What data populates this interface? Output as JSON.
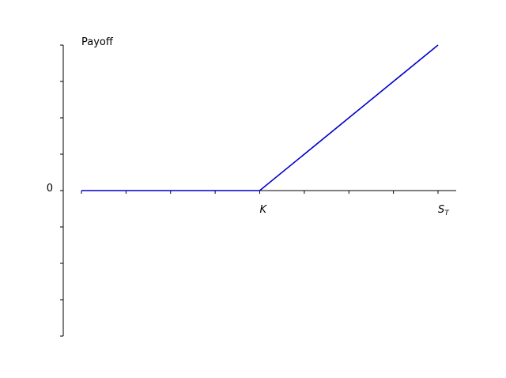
{
  "chart_data": {
    "type": "line",
    "title": "",
    "ylabel": "Payoff",
    "xlabel": "",
    "x_tick_labels": [
      {
        "x": 8,
        "label": "K",
        "sub": ""
      },
      {
        "x": 16,
        "label": "S",
        "sub": "T"
      }
    ],
    "y_tick_labels": [
      {
        "y": 0,
        "label": "0"
      }
    ],
    "x_ticks": [
      0,
      2,
      4,
      6,
      8,
      10,
      12,
      14,
      16
    ],
    "y_ticks": [
      -4,
      -3,
      -2,
      -1,
      0,
      1,
      2,
      3,
      4
    ],
    "xlim": [
      0,
      17
    ],
    "ylim": [
      -4,
      4
    ],
    "series": [
      {
        "x": [
          0,
          8,
          16
        ],
        "y": [
          0,
          0,
          4
        ],
        "color": "#0000cc"
      }
    ],
    "grid": false
  }
}
